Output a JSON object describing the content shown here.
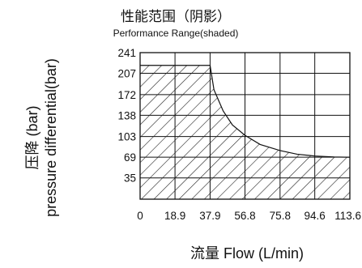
{
  "chart_data": {
    "type": "area",
    "title": "性能范围（阴影）",
    "subtitle": "Performance Range(shaded)",
    "xlabel": "流量 Flow (L/min)",
    "ylabel_cn": "压降 (bar)",
    "ylabel_en": "pressure differential(bar)",
    "x_ticks": [
      "0",
      "18.9",
      "37.9",
      "56.8",
      "75.8",
      "94.6",
      "113.6"
    ],
    "y_ticks": [
      "35",
      "69",
      "103",
      "138",
      "172",
      "207",
      "241"
    ],
    "xlim": [
      0,
      113.6
    ],
    "ylim": [
      0,
      241
    ],
    "grid": true,
    "series": [
      {
        "x": [
          0,
          37.9,
          40,
          45,
          50,
          56.8,
          65,
          75.8,
          85,
          94.6,
          105,
          113.6
        ],
        "values": [
          220,
          220,
          180,
          145,
          122,
          105,
          90,
          80,
          74,
          71,
          69.5,
          69
        ]
      }
    ]
  }
}
